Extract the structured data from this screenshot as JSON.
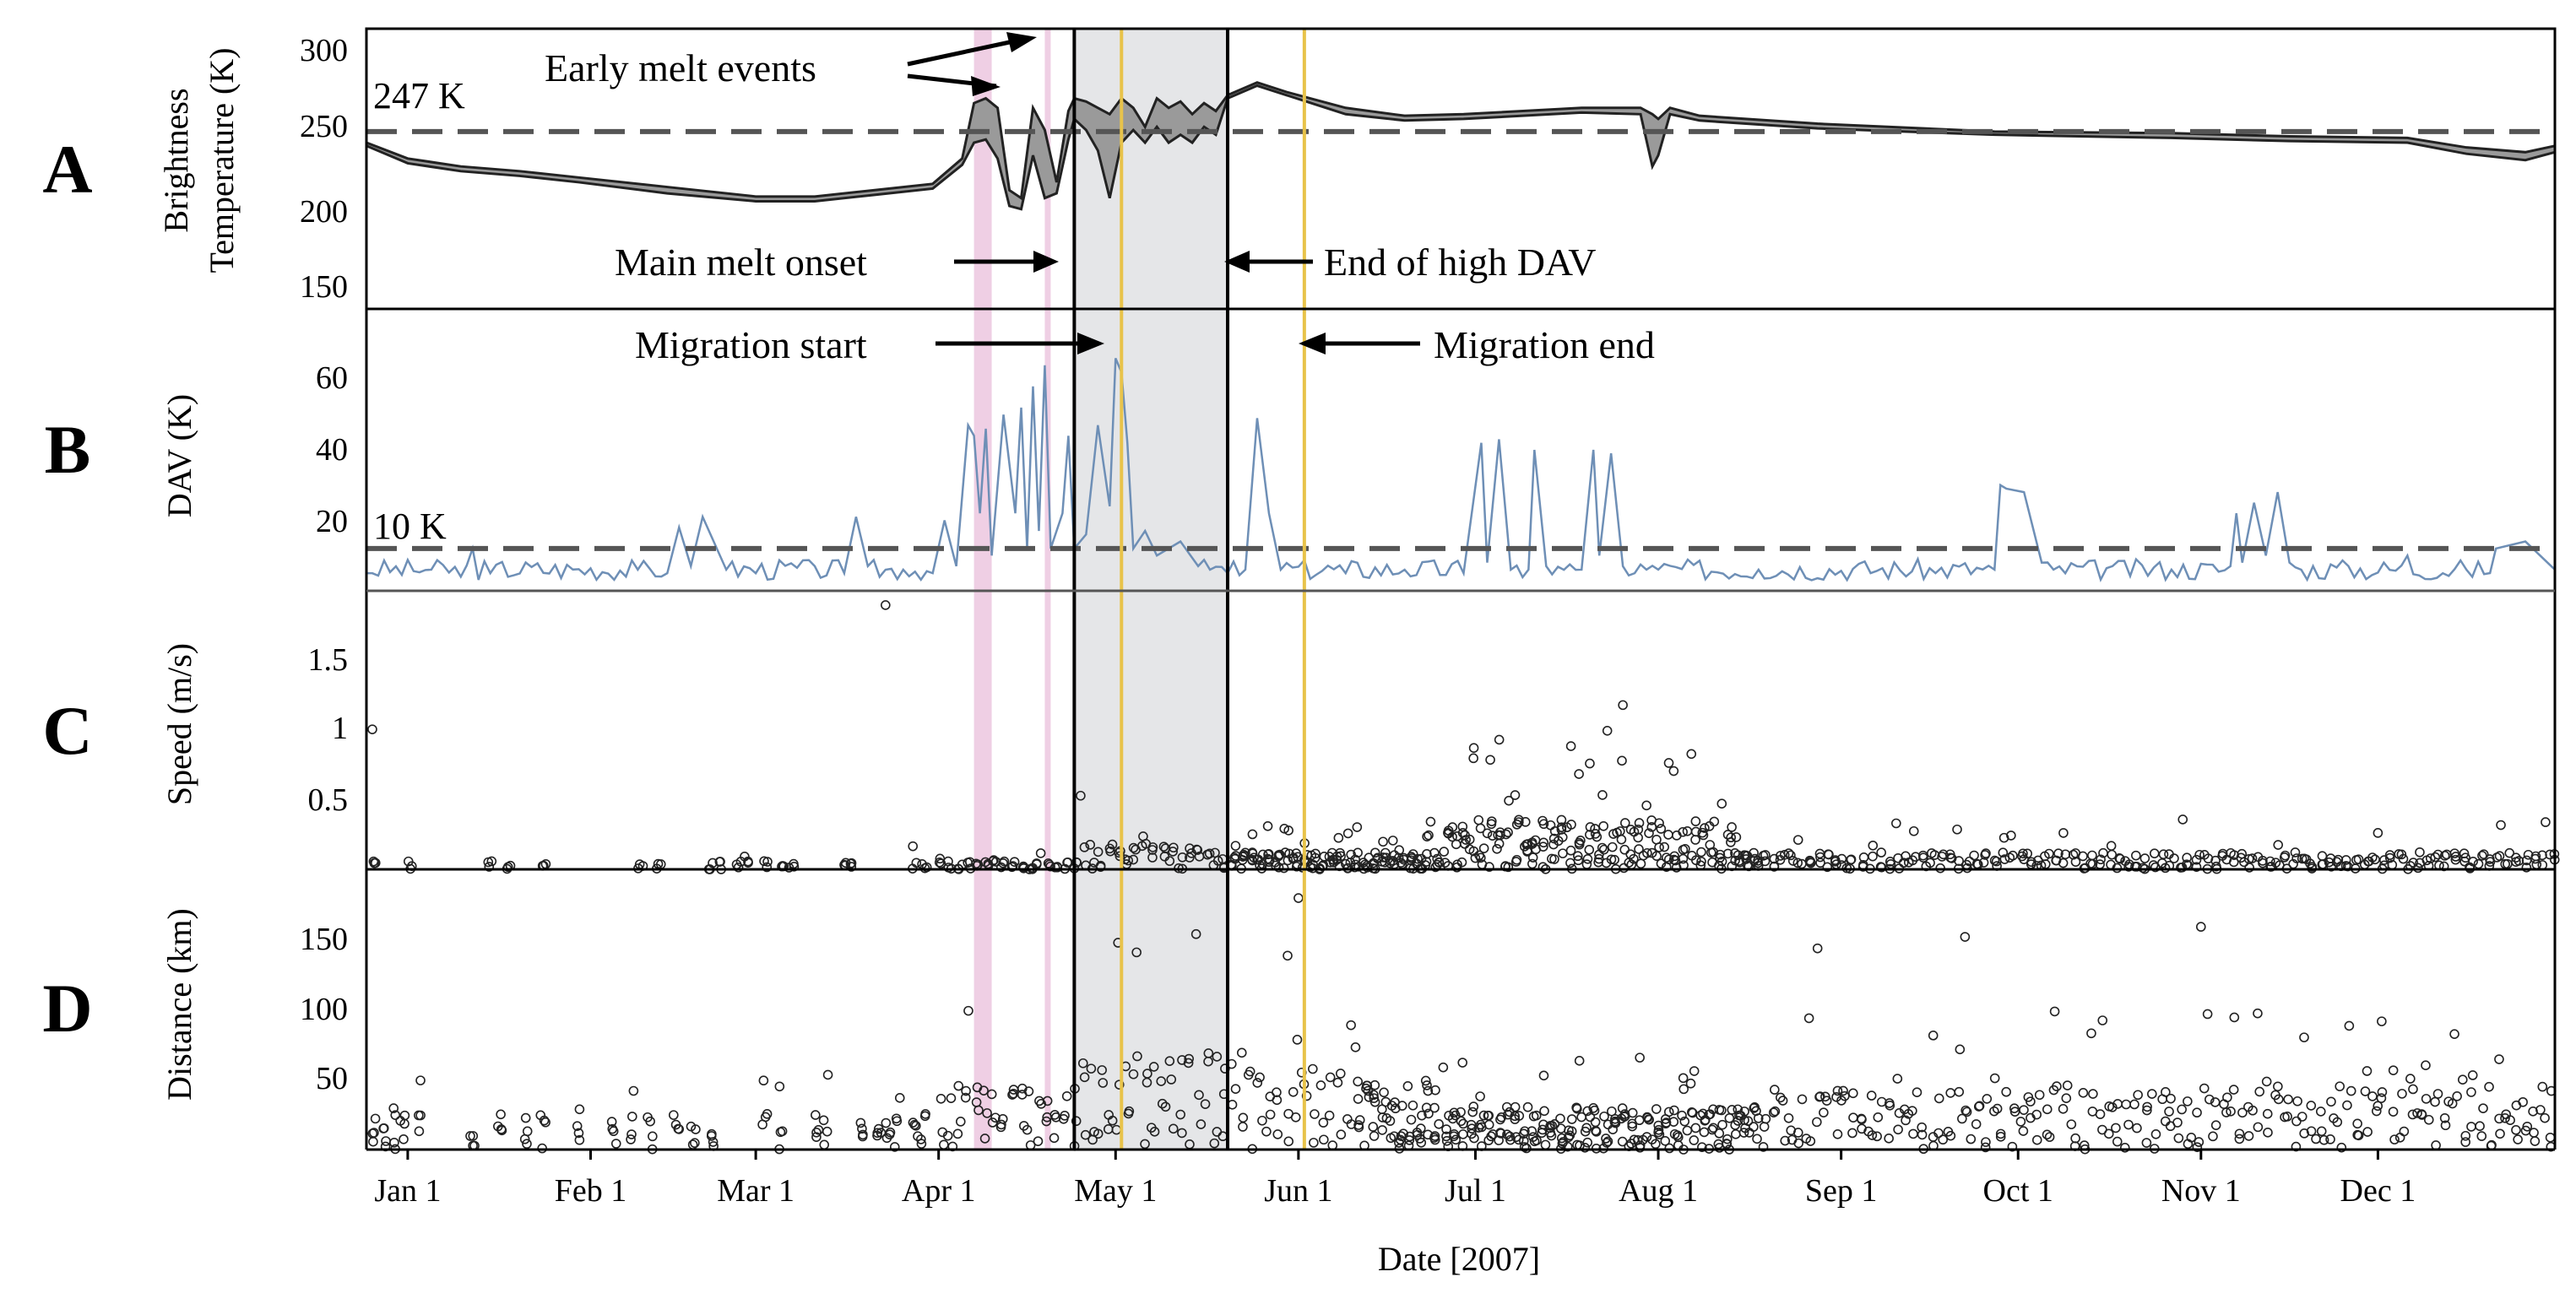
{
  "chart_data": {
    "type": "multi-panel time series",
    "year": 2007,
    "xlabel": "Date [2007]",
    "x_ticks": [
      "Jan 1",
      "Feb 1",
      "Mar 1",
      "Apr 1",
      "May 1",
      "Jun 1",
      "Jul 1",
      "Aug 1",
      "Sep 1",
      "Oct 1",
      "Nov 1",
      "Dec 1"
    ],
    "x_tick_doy": [
      1,
      32,
      60,
      91,
      121,
      152,
      182,
      213,
      244,
      274,
      305,
      335
    ],
    "x_range_doy": [
      -6,
      365
    ],
    "events": {
      "early_melt_bands_doy": [
        [
          97,
          100
        ],
        [
          109,
          110
        ]
      ],
      "main_melt_onset_doy": 114,
      "end_high_dav_doy": 140,
      "migration_start_doy": 122,
      "migration_end_doy": 153
    },
    "annotations": {
      "early_melt": "Early melt events",
      "main_melt_onset": "Main melt onset",
      "end_high_dav": "End of high DAV",
      "migration_start": "Migration start",
      "migration_end": "Migration end"
    },
    "panels": [
      {
        "letter": "A",
        "ylabel_line1": "Brightness",
        "ylabel_line2": "Temperature (K)",
        "yticks": [
          "150",
          "200",
          "250",
          "300"
        ],
        "ylim": [
          135,
          312
        ],
        "threshold": 247,
        "threshold_label": "247 K",
        "series": [
          {
            "name": "Brightness temperature (descending/ascending envelope)",
            "doy": [
              -6,
              1,
              10,
              20,
              30,
              45,
              60,
              70,
              80,
              90,
              95,
              97,
              99,
              101,
              103,
              105,
              107,
              109,
              111,
              113,
              114,
              116,
              118,
              120,
              122,
              124,
              126,
              128,
              130,
              132,
              134,
              136,
              138,
              140,
              145,
              150,
              160,
              170,
              180,
              200,
              210,
              212,
              213,
              215,
              220,
              240,
              270,
              300,
              320,
              340,
              350,
              360,
              365
            ],
            "upper": [
              240,
              230,
              225,
              222,
              218,
              212,
              206,
              206,
              210,
              214,
              230,
              265,
              268,
              262,
              210,
              205,
              262,
              248,
              215,
              260,
              268,
              266,
              262,
              258,
              268,
              262,
              250,
              268,
              262,
              266,
              258,
              265,
              260,
              270,
              278,
              272,
              262,
              257,
              258,
              262,
              262,
              258,
              255,
              262,
              257,
              252,
              247,
              246,
              244,
              243,
              237,
              234,
              238
            ],
            "lower": [
              238,
              227,
              222,
              219,
              215,
              208,
              203,
              203,
              207,
              211,
              226,
              240,
              242,
              230,
              200,
              198,
              232,
              205,
              208,
              242,
              255,
              248,
              235,
              205,
              240,
              248,
              240,
              250,
              240,
              245,
              240,
              250,
              245,
              268,
              276,
              270,
              258,
              254,
              255,
              259,
              258,
              225,
              232,
              258,
              254,
              249,
              245,
              243,
              241,
              240,
              233,
              229,
              234
            ]
          }
        ]
      },
      {
        "letter": "B",
        "ylabel": "DAV (K)",
        "yticks": [
          "20",
          "40",
          "60"
        ],
        "ylim": [
          -2,
          78
        ],
        "threshold": 10,
        "threshold_label": "10 K",
        "series": [
          {
            "name": "DAV",
            "doy": [
              -6,
              5,
              10,
              12,
              15,
              40,
              45,
              47,
              49,
              51,
              55,
              70,
              75,
              77,
              79,
              85,
              90,
              92,
              94,
              96,
              97,
              98,
              99,
              100,
              102,
              104,
              105,
              106,
              107,
              108,
              109,
              110,
              112,
              113,
              114,
              116,
              118,
              120,
              121,
              122,
              123,
              124,
              126,
              128,
              132,
              135,
              140,
              143,
              145,
              147,
              149,
              160,
              170,
              180,
              183,
              184,
              186,
              188,
              191,
              192,
              194,
              200,
              202,
              203,
              205,
              207,
              209,
              211,
              213,
              230,
              260,
              270,
              271,
              272,
              275,
              278,
              280,
              290,
              300,
              310,
              311,
              312,
              314,
              316,
              318,
              320,
              322,
              330,
              340,
              350,
              355,
              360,
              365
            ],
            "values": [
              3,
              4,
              2,
              10,
              3,
              4,
              3,
              16,
              5,
              19,
              4,
              5,
              3,
              19,
              5,
              4,
              3,
              18,
              5,
              45,
              42,
              20,
              44,
              8,
              48,
              20,
              50,
              10,
              56,
              15,
              62,
              10,
              20,
              42,
              10,
              14,
              45,
              22,
              64,
              60,
              40,
              10,
              15,
              8,
              12,
              5,
              3,
              4,
              47,
              20,
              4,
              3,
              4,
              3,
              40,
              6,
              41,
              4,
              4,
              38,
              5,
              4,
              38,
              8,
              37,
              5,
              3,
              4,
              4,
              4,
              3,
              4,
              28,
              27,
              26,
              6,
              4,
              5,
              4,
              5,
              20,
              6,
              23,
              8,
              26,
              6,
              4,
              5,
              8,
              4,
              10,
              12,
              4
            ]
          }
        ]
      },
      {
        "letter": "C",
        "ylabel": "Speed (m/s)",
        "yticks": [
          "0.5",
          "1",
          "1.5"
        ],
        "ylim": [
          0,
          1.95
        ],
        "series": [
          {
            "name": "Speed",
            "marker": "open circle",
            "generated_from_seed": 7
          }
        ],
        "notable_points": [
          {
            "doy": -5,
            "value": 0.98
          },
          {
            "doy": 82,
            "value": 1.85
          },
          {
            "doy": 207,
            "value": 1.15
          }
        ]
      },
      {
        "letter": "D",
        "ylabel": "Distance (km)",
        "yticks": [
          "50",
          "100",
          "150"
        ],
        "ylim": [
          0,
          195
        ],
        "series": [
          {
            "name": "Distance",
            "marker": "open circle",
            "generated_from_seed": 11
          }
        ],
        "notable_points": [
          {
            "doy": 152,
            "value": 175
          },
          {
            "doy": 265,
            "value": 148
          },
          {
            "doy": 305,
            "value": 155
          },
          {
            "doy": 240,
            "value": 140
          }
        ]
      }
    ]
  }
}
